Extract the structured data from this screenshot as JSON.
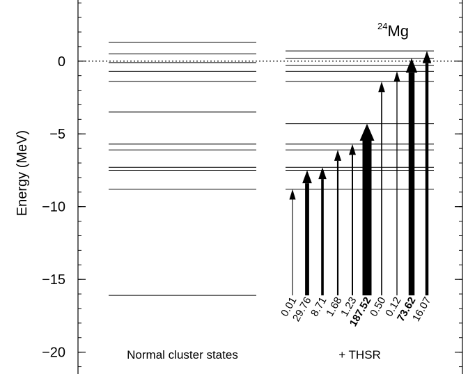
{
  "chart_data": {
    "type": "level-scheme",
    "title": "",
    "nucleus_label": {
      "mass_number": "24",
      "element": "Mg"
    },
    "ylabel": "Energy (MeV)",
    "ylim": [
      -21.5,
      4.2
    ],
    "yticks": [
      {
        "value": 0,
        "label": "0"
      },
      {
        "value": -5,
        "label": "−5"
      },
      {
        "value": -10,
        "label": "−10"
      },
      {
        "value": -15,
        "label": "−15"
      },
      {
        "value": -20,
        "label": "−20"
      }
    ],
    "minor_tick_step": 1,
    "threshold_line": {
      "energy": 0,
      "style": "dotted"
    },
    "columns": [
      {
        "label": "Normal cluster states",
        "levels": [
          1.3,
          0.5,
          -0.1,
          -0.7,
          -1.4,
          -3.5,
          -5.7,
          -6.1,
          -7.3,
          -7.5,
          -8.8,
          -16.1
        ]
      },
      {
        "label": "+ THSR",
        "levels": [
          0.7,
          0.2,
          -0.3,
          -0.7,
          -1.4,
          -4.3,
          -5.7,
          -6.1,
          -7.3,
          -7.5,
          -8.8
        ]
      }
    ],
    "transitions": [
      {
        "label": "0.01",
        "to_energy": -8.8,
        "strength": 0.01,
        "bold": false
      },
      {
        "label": "29.76",
        "to_energy": -7.5,
        "strength": 29.76,
        "bold": false
      },
      {
        "label": "8.71",
        "to_energy": -7.3,
        "strength": 8.71,
        "bold": false
      },
      {
        "label": "1.68",
        "to_energy": -6.1,
        "strength": 1.68,
        "bold": false
      },
      {
        "label": "1.23",
        "to_energy": -5.7,
        "strength": 1.23,
        "bold": false
      },
      {
        "label": "187.52",
        "to_energy": -4.3,
        "strength": 187.52,
        "bold": true
      },
      {
        "label": "0.50",
        "to_energy": -1.4,
        "strength": 0.5,
        "bold": false
      },
      {
        "label": "0.12",
        "to_energy": -0.7,
        "strength": 0.12,
        "bold": false
      },
      {
        "label": "73.62",
        "to_energy": 0.2,
        "strength": 73.62,
        "bold": true
      },
      {
        "label": "16.07",
        "to_energy": 0.7,
        "strength": 16.07,
        "bold": false
      }
    ],
    "transition_base_energy": -16.1
  }
}
